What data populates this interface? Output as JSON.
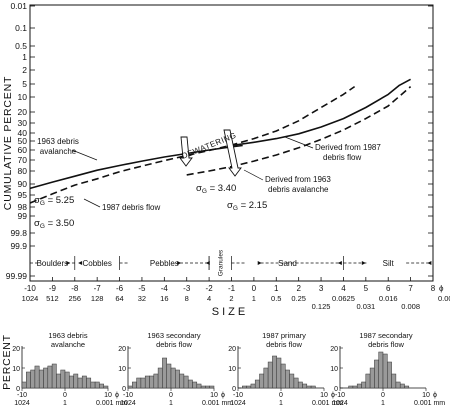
{
  "chart_data": [
    {
      "type": "line",
      "ylabel": "CUMULATIVE PERCENT",
      "xlabel": "SIZE",
      "x_unit_phi": "ϕ",
      "x_unit_mm": "0.004 mm",
      "y_scale": "probability",
      "xlim": [
        -10,
        8
      ],
      "phi_ticks": [
        "-10",
        "-9",
        "-8",
        "-7",
        "-6",
        "-5",
        "-4",
        "-3",
        "-2",
        "-1",
        "0",
        "1",
        "2",
        "3",
        "4",
        "5",
        "6",
        "7",
        "8"
      ],
      "mm_ticks_upper": [
        "1024",
        "512",
        "256",
        "128",
        "64",
        "32",
        "16",
        "8",
        "4",
        "2",
        "1",
        "0.5",
        "0.25",
        "",
        "0.0625",
        "",
        "0.016",
        ""
      ],
      "mm_ticks_lower": [
        "0.125",
        "0.031",
        "0.008"
      ],
      "y_ticks": [
        "0.01",
        "0.1",
        "0.5",
        "1",
        "2",
        "5",
        "10",
        "20",
        "30",
        "40",
        "50",
        "60",
        "70",
        "80",
        "90",
        "95",
        "98",
        "99",
        "99.8",
        "99.9",
        "99.99"
      ],
      "size_classes": [
        "Boulders",
        "Cobbles",
        "Pebbles",
        "Granules",
        "Sand",
        "Silt"
      ],
      "series": [
        {
          "name": "1963 debris avalanche",
          "dash": false,
          "x": [
            -10,
            -9,
            -8,
            -7,
            -6,
            -5,
            -4,
            -3,
            -2,
            -1,
            -0.5
          ],
          "y": [
            92,
            88.5,
            84,
            79.3,
            75,
            71,
            67,
            63.5,
            60,
            56.5,
            55
          ]
        },
        {
          "name": "1987 debris flow",
          "dash": true,
          "x": [
            -10,
            -9,
            -8,
            -7,
            -6,
            -5,
            -4,
            -3,
            -2,
            -1,
            0,
            1,
            2,
            3,
            4,
            4.5
          ],
          "y": [
            97,
            94.5,
            90.5,
            86,
            80.5,
            75.5,
            70.5,
            65.5,
            60.5,
            54.5,
            47,
            38,
            28,
            17,
            9,
            6
          ]
        },
        {
          "name": "Derived from 1987 debris flow",
          "dash": false,
          "x": [
            -1,
            0,
            1,
            2,
            3,
            4,
            5,
            6,
            6.5,
            7
          ],
          "y": [
            55,
            51.5,
            47,
            41,
            34,
            26,
            17,
            9,
            5.5,
            4
          ]
        },
        {
          "name": "Derived from 1963 debris avalanche",
          "dash": true,
          "x": [
            -3,
            -2,
            -1,
            0,
            1,
            2,
            3,
            4,
            5,
            6,
            7
          ],
          "y": [
            83,
            80,
            76,
            71,
            65,
            57.5,
            48,
            37,
            26,
            16,
            6
          ]
        }
      ],
      "annotations": {
        "sigma_symbol": "σ",
        "sigma_sub": "G",
        "sigma_a": "= 5.25",
        "sigma_b": "= 3.50",
        "sigma_c": "= 3.40",
        "sigma_d": "= 2.15",
        "dewatering": "DEWATERING",
        "label_1963": [
          "1963 debris",
          "avalanche"
        ],
        "label_1987": "1987 debris flow",
        "label_derived_1987": [
          "Derived from 1987",
          "debris flow"
        ],
        "label_derived_1963": [
          "Derived from 1963",
          "debris avalanche"
        ]
      }
    },
    {
      "type": "bar",
      "ylabel": "PERCENT",
      "y_ticks": [
        "20",
        "10",
        "0"
      ],
      "x_phi_ticks": [
        "-10",
        "0",
        "10"
      ],
      "phi_symbol": "ϕ",
      "x_mm_ticks": [
        "1024",
        "1",
        "0.001 mm"
      ],
      "panels": [
        {
          "title": [
            "1963 debris",
            "avalanche"
          ],
          "values": [
            3,
            8,
            9,
            11,
            9,
            10,
            11,
            12,
            7,
            9,
            8,
            6,
            7,
            5,
            6,
            5,
            3,
            3,
            2,
            1
          ]
        },
        {
          "title": [
            "1963 secondary",
            "debris flow"
          ],
          "values": [
            1,
            3,
            5,
            5,
            6,
            6,
            7,
            10,
            15,
            12,
            10,
            9,
            7,
            6,
            4,
            3,
            2,
            1,
            1,
            1
          ]
        },
        {
          "title": [
            "1987 primary",
            "debris flow"
          ],
          "values": [
            0,
            1,
            1,
            2,
            4,
            7,
            10,
            13,
            16,
            15,
            12,
            9,
            7,
            5,
            3,
            2,
            1,
            1,
            0,
            0
          ]
        },
        {
          "title": [
            "1987 secondary",
            "debris flow"
          ],
          "values": [
            0,
            0,
            1,
            1,
            2,
            3,
            7,
            10,
            14,
            18,
            17,
            13,
            7,
            3,
            2,
            1,
            0,
            0,
            0,
            0
          ]
        }
      ]
    }
  ]
}
